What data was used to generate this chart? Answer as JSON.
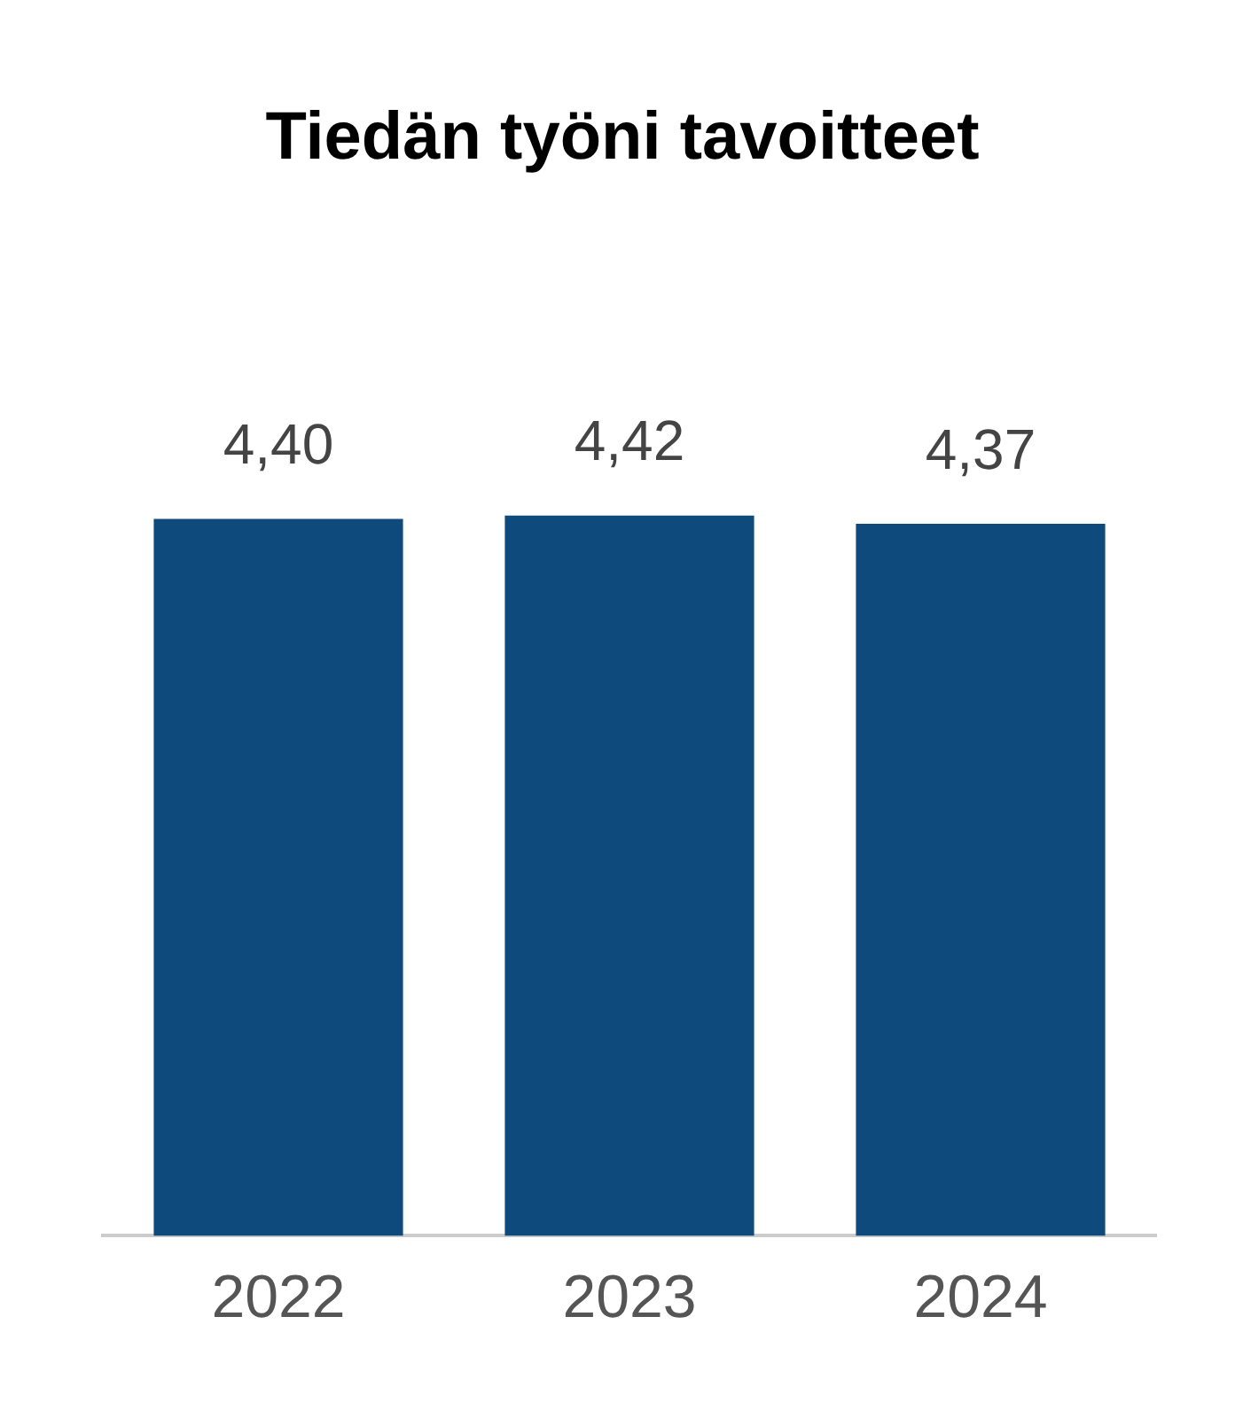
{
  "chart_data": {
    "type": "bar",
    "title": "Tiedän työni tavoitteet",
    "categories": [
      "2022",
      "2023",
      "2024"
    ],
    "values": [
      4.4,
      4.42,
      4.37
    ],
    "color": "#0f4a7d",
    "value_labels": [
      "4,40",
      "4,42",
      "4,37"
    ],
    "relative": false,
    "grid": false,
    "legend": false
  }
}
